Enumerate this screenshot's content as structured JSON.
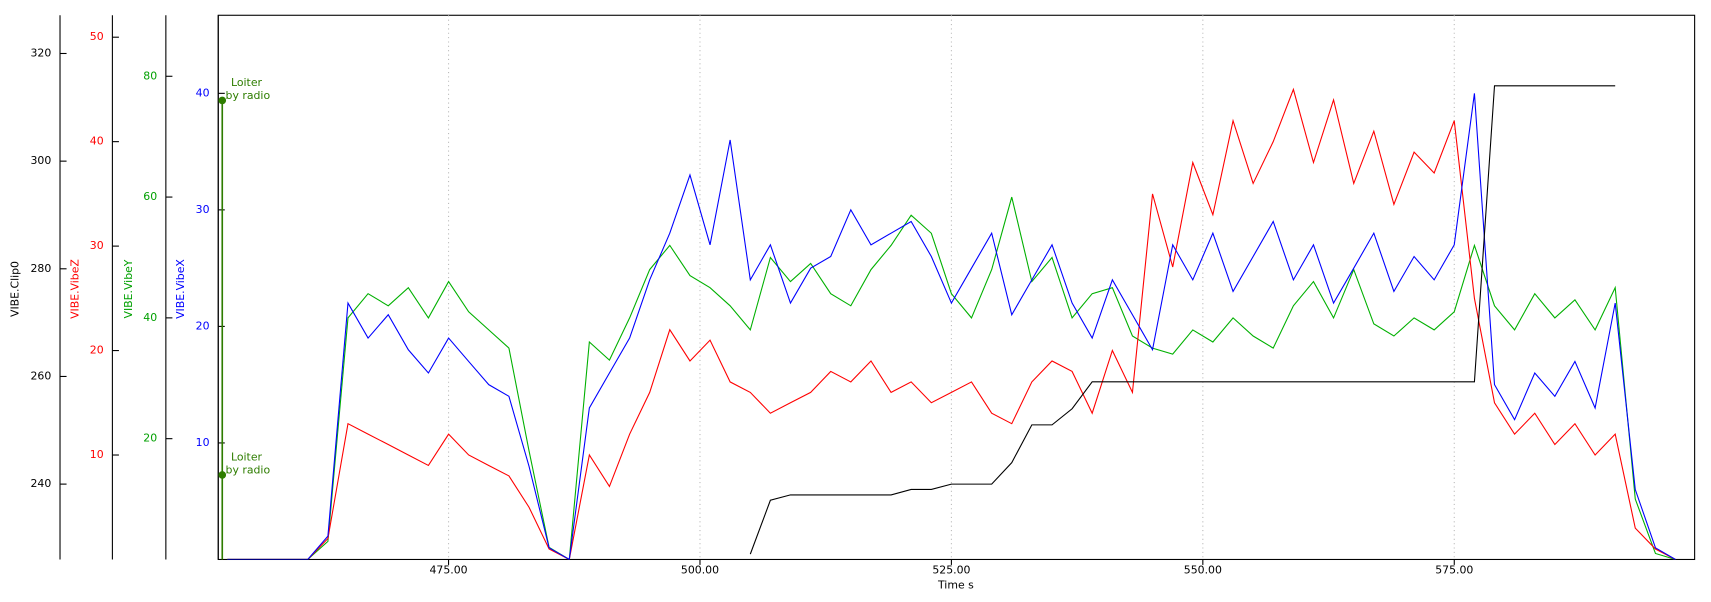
{
  "chart_data": {
    "type": "line",
    "xlabel": "Time s",
    "xlim": [
      452.1,
      598.9
    ],
    "xticks": [
      {
        "value": 475,
        "label": "475.00"
      },
      {
        "value": 500,
        "label": "500.00"
      },
      {
        "value": 525,
        "label": "525.00"
      },
      {
        "value": 550,
        "label": "550.00"
      },
      {
        "value": 575,
        "label": "575.00"
      }
    ],
    "grid": true,
    "yaxes": [
      {
        "label": "VIBE.Clip0",
        "color": "#000000",
        "ylim": [
          226,
          327.1
        ],
        "yticks": [
          240,
          260,
          280,
          300,
          320
        ]
      },
      {
        "label": "VIBE.VibeZ",
        "color": "#ff0000",
        "ylim": [
          0,
          52.1
        ],
        "yticks": [
          10,
          20,
          30,
          40,
          50
        ]
      },
      {
        "label": "VIBE.VibeY",
        "color": "#00a000",
        "ylim": [
          0,
          90.1
        ],
        "yticks": [
          20,
          40,
          60,
          80
        ]
      },
      {
        "label": "VIBE.VibeX",
        "color": "#0000ff",
        "ylim": [
          0,
          46.7
        ],
        "yticks": [
          10,
          20,
          30,
          40
        ]
      }
    ],
    "x": [
      453,
      455,
      457,
      459,
      461,
      463,
      465,
      467,
      469,
      471,
      473,
      475,
      477,
      479,
      481,
      483,
      485,
      487,
      489,
      491,
      493,
      495,
      497,
      499,
      501,
      503,
      505,
      507,
      509,
      511,
      513,
      515,
      517,
      519,
      521,
      523,
      525,
      527,
      529,
      531,
      533,
      535,
      537,
      539,
      541,
      543,
      545,
      547,
      549,
      551,
      553,
      555,
      557,
      559,
      561,
      563,
      565,
      567,
      569,
      571,
      573,
      575,
      577,
      579,
      581,
      583,
      585,
      587,
      589,
      591,
      593,
      595,
      597
    ],
    "series": [
      {
        "name": "VIBE.VibeY",
        "color": "#00b000",
        "axis": 2,
        "values": [
          0,
          0,
          0,
          0,
          0,
          3,
          40,
          44,
          42,
          45,
          40,
          46,
          41,
          38,
          35,
          18,
          2,
          0,
          36,
          33,
          40,
          48,
          52,
          47,
          45,
          42,
          38,
          50,
          46,
          49,
          44,
          42,
          48,
          52,
          57,
          54,
          44,
          40,
          48,
          60,
          46,
          50,
          40,
          44,
          45,
          37,
          35,
          34,
          38,
          36,
          40,
          37,
          35,
          42,
          46,
          40,
          48,
          39,
          37,
          40,
          38,
          41,
          52,
          42,
          38,
          44,
          40,
          43,
          38,
          45,
          10,
          1,
          0
        ]
      },
      {
        "name": "VIBE.VibeZ",
        "color": "#ff0000",
        "axis": 1,
        "values": [
          0,
          0,
          0,
          0,
          0,
          2,
          13,
          12,
          11,
          10,
          9,
          12,
          10,
          9,
          8,
          5,
          1,
          0,
          10,
          7,
          12,
          16,
          22,
          19,
          21,
          17,
          16,
          14,
          15,
          16,
          18,
          17,
          19,
          16,
          17,
          15,
          16,
          17,
          14,
          13,
          17,
          19,
          18,
          14,
          20,
          16,
          35,
          28,
          38,
          33,
          42,
          36,
          40,
          45,
          38,
          44,
          36,
          41,
          34,
          39,
          37,
          42,
          25,
          15,
          12,
          14,
          11,
          13,
          10,
          12,
          3,
          1,
          0
        ]
      },
      {
        "name": "VIBE.VibeX",
        "color": "#0000ff",
        "axis": 3,
        "values": [
          0,
          0,
          0,
          0,
          0,
          2,
          22,
          19,
          21,
          18,
          16,
          19,
          17,
          15,
          14,
          8,
          1,
          0,
          13,
          16,
          19,
          24,
          28,
          33,
          27,
          36,
          24,
          27,
          22,
          25,
          26,
          30,
          27,
          28,
          29,
          26,
          22,
          25,
          28,
          21,
          24,
          27,
          22,
          19,
          24,
          21,
          18,
          27,
          24,
          28,
          23,
          26,
          29,
          24,
          27,
          22,
          25,
          28,
          23,
          26,
          24,
          27,
          40,
          15,
          12,
          16,
          14,
          17,
          13,
          22,
          6,
          1,
          0
        ]
      },
      {
        "name": "VIBE.Clip0",
        "color": "#000000",
        "axis": 0,
        "values": [
          null,
          null,
          null,
          null,
          null,
          null,
          null,
          null,
          null,
          null,
          null,
          null,
          null,
          null,
          null,
          null,
          null,
          null,
          null,
          null,
          null,
          null,
          null,
          null,
          null,
          null,
          227,
          237,
          238,
          238,
          238,
          238,
          238,
          238,
          239,
          239,
          240,
          240,
          240,
          244,
          251,
          251,
          254,
          259,
          259,
          259,
          259,
          259,
          259,
          259,
          259,
          259,
          259,
          259,
          259,
          259,
          259,
          259,
          259,
          259,
          259,
          259,
          259,
          314,
          314,
          314,
          314,
          314,
          314,
          314,
          null,
          null,
          null
        ]
      }
    ],
    "annotations": [
      {
        "x": 452.5,
        "y": 76,
        "axis": 2,
        "color": "#2e7d00",
        "text": [
          "Loiter",
          "by radio"
        ]
      },
      {
        "x": 452.5,
        "y": 14,
        "axis": 2,
        "color": "#2e7d00",
        "text": [
          "Loiter",
          "by radio"
        ]
      }
    ]
  }
}
